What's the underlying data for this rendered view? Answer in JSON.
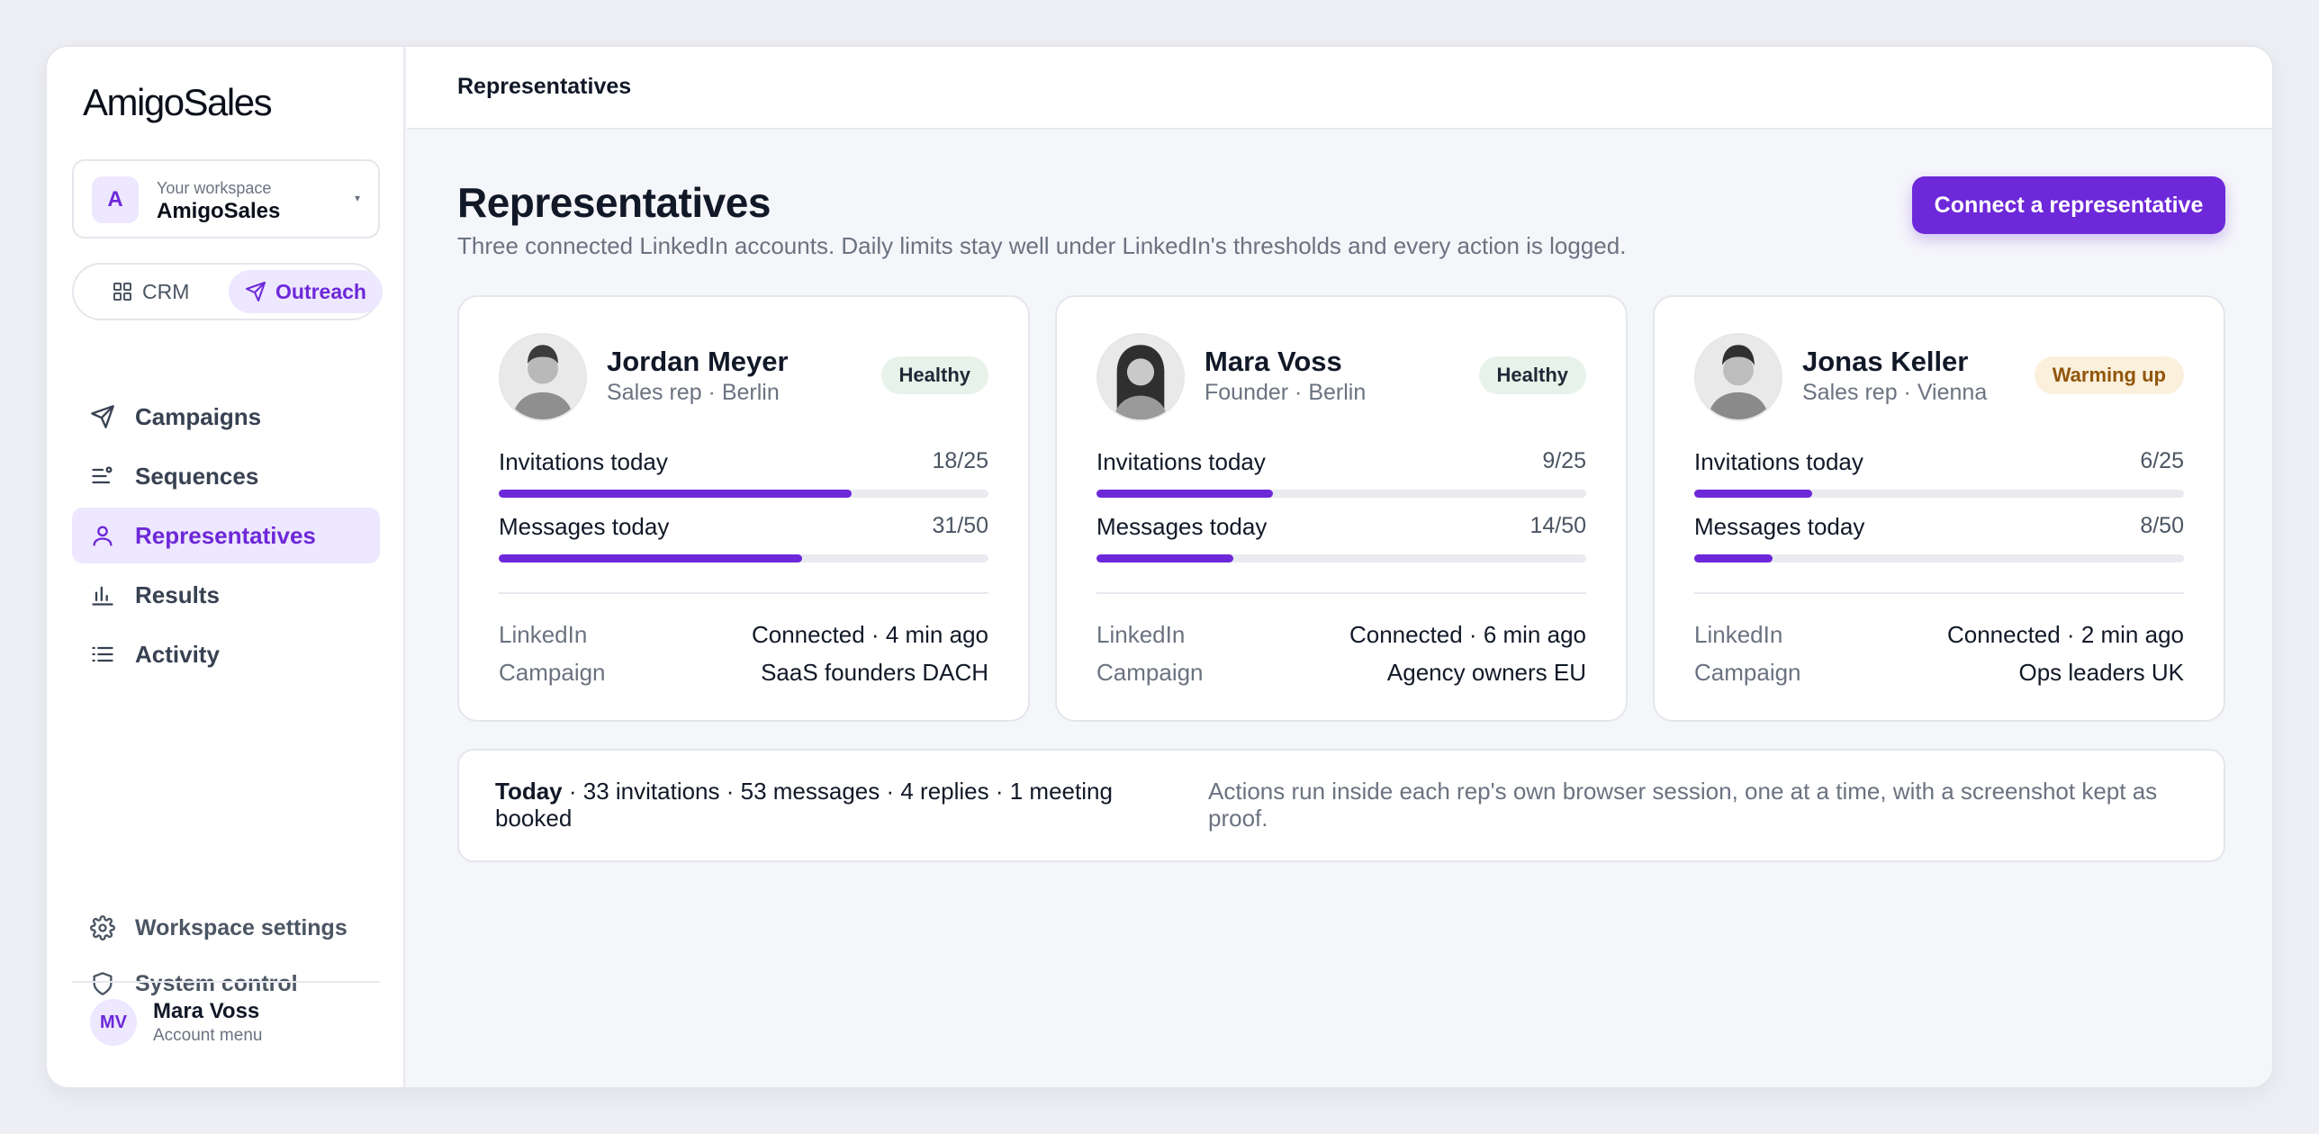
{
  "app": {
    "logo": "AmigoSales"
  },
  "workspace": {
    "caption": "Your workspace",
    "name": "AmigoSales",
    "initial": "A"
  },
  "switcher": {
    "crm": "CRM",
    "outreach": "Outreach",
    "active": "outreach"
  },
  "nav": [
    {
      "label": "Campaigns",
      "icon": "send-icon",
      "active": false
    },
    {
      "label": "Sequences",
      "icon": "sequence-icon",
      "active": false
    },
    {
      "label": "Representatives",
      "icon": "user-icon",
      "active": true
    },
    {
      "label": "Results",
      "icon": "bar-chart-icon",
      "active": false
    },
    {
      "label": "Activity",
      "icon": "list-icon",
      "active": false
    }
  ],
  "bottom": {
    "settings": "Workspace settings",
    "system": "System control"
  },
  "account": {
    "initials": "MV",
    "name": "Mara Voss",
    "sub": "Account menu"
  },
  "topbar": {
    "title": "Representatives"
  },
  "page": {
    "title": "Representatives",
    "subtitle": "Three connected LinkedIn accounts. Daily limits stay well under LinkedIn's thresholds and every action is logged.",
    "cta": "Connect a representative"
  },
  "labels": {
    "invitations": "Invitations today",
    "messages": "Messages today",
    "linkedin": "LinkedIn",
    "campaign": "Campaign"
  },
  "reps": [
    {
      "name": "Jordan Meyer",
      "role": "Sales rep · Berlin",
      "status": "Healthy",
      "status_kind": "healthy",
      "invitations": "18/25",
      "invitations_fraction": 0.72,
      "messages": "31/50",
      "messages_fraction": 0.62,
      "linkedin": "Connected · 4 min ago",
      "campaign": "SaaS founders DACH"
    },
    {
      "name": "Mara Voss",
      "role": "Founder · Berlin",
      "status": "Healthy",
      "status_kind": "healthy",
      "invitations": "9/25",
      "invitations_fraction": 0.36,
      "messages": "14/50",
      "messages_fraction": 0.28,
      "linkedin": "Connected · 6 min ago",
      "campaign": "Agency owners EU"
    },
    {
      "name": "Jonas Keller",
      "role": "Sales rep · Vienna",
      "status": "Warming up",
      "status_kind": "warming",
      "invitations": "6/25",
      "invitations_fraction": 0.24,
      "messages": "8/50",
      "messages_fraction": 0.16,
      "linkedin": "Connected · 2 min ago",
      "campaign": "Ops leaders UK"
    }
  ],
  "summary": {
    "label": "Today",
    "text": "· 33 invitations · 53 messages · 4 replies · 1 meeting booked",
    "note": "Actions run inside each rep's own browser session, one at a time, with a screenshot kept as proof."
  },
  "colors": {
    "accent": "#6d28d9",
    "accent_soft": "#ede7ff",
    "healthy_bg": "#e7f3ea",
    "warming_bg": "#fbf0dc",
    "warming_text": "#92560b"
  }
}
